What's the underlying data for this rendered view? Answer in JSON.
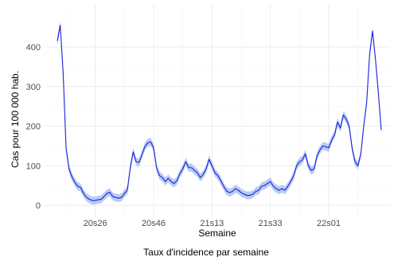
{
  "chart_data": {
    "type": "line",
    "title": "",
    "xlabel": "Semaine",
    "ylabel": "Cas pour 100 000 hab.",
    "caption": "Taux d'incidence par semaine",
    "ylim": [
      -15,
      490
    ],
    "yticks": [
      0,
      100,
      200,
      300,
      400
    ],
    "xticks": [
      {
        "index": 13,
        "label": "20s26"
      },
      {
        "index": 33,
        "label": "20s46"
      },
      {
        "index": 53,
        "label": "21s13"
      },
      {
        "index": 73,
        "label": "21s33"
      },
      {
        "index": 93,
        "label": "22s01"
      }
    ],
    "grid": true,
    "colors": {
      "line": "#1f1fe0",
      "band": "#a9c4f0",
      "grid": "#ebebeb"
    },
    "series": [
      {
        "values": [
          415,
          455,
          335,
          145,
          92,
          72,
          58,
          48,
          45,
          30,
          20,
          15,
          12,
          12,
          14,
          15,
          22,
          30,
          33,
          22,
          20,
          18,
          20,
          30,
          38,
          95,
          135,
          110,
          108,
          128,
          148,
          158,
          160,
          145,
          95,
          75,
          70,
          60,
          68,
          60,
          55,
          62,
          80,
          92,
          110,
          95,
          95,
          88,
          82,
          70,
          78,
          92,
          116,
          100,
          82,
          75,
          62,
          48,
          36,
          32,
          35,
          42,
          38,
          32,
          28,
          25,
          25,
          28,
          35,
          38,
          48,
          50,
          55,
          60,
          48,
          42,
          38,
          42,
          38,
          48,
          60,
          75,
          100,
          110,
          115,
          130,
          100,
          88,
          92,
          125,
          140,
          150,
          148,
          145,
          165,
          178,
          210,
          195,
          228,
          218,
          200,
          145,
          110,
          100,
          130,
          200,
          260,
          380,
          440,
          370,
          285,
          190
        ],
        "band": 10
      }
    ]
  }
}
